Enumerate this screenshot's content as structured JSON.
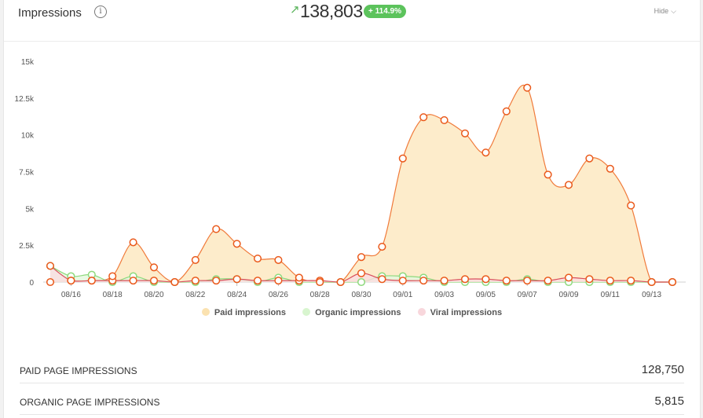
{
  "header": {
    "title": "Impressions",
    "info_icon": "i",
    "total": "138,803",
    "change_badge": "+ 114.9%",
    "hide_label": "Hide",
    "arrow_icon": "trend-up-arrow",
    "trend_color": "#5cc35c"
  },
  "legend": [
    {
      "label": "Paid impressions",
      "color": "#fbe2b0"
    },
    {
      "label": "Organic impressions",
      "color": "#d8f5cf"
    },
    {
      "label": "Viral impressions",
      "color": "#f8d7dc"
    }
  ],
  "stats": [
    {
      "label": "PAID PAGE IMPRESSIONS",
      "value": "128,750"
    },
    {
      "label": "ORGANIC PAGE IMPRESSIONS",
      "value": "5,815"
    }
  ],
  "chart_data": {
    "type": "area",
    "x_tick_labels": [
      "08/16",
      "08/18",
      "08/20",
      "08/22",
      "08/24",
      "08/26",
      "08/28",
      "08/30",
      "09/01",
      "09/03",
      "09/05",
      "09/07",
      "09/09",
      "09/11",
      "09/13"
    ],
    "y_tick_labels": [
      "0",
      "2.5k",
      "5k",
      "7.5k",
      "10k",
      "12.5k",
      "15k"
    ],
    "ylim": [
      0,
      15000
    ],
    "x": [
      "08/15",
      "08/16",
      "08/17",
      "08/18",
      "08/19",
      "08/20",
      "08/21",
      "08/22",
      "08/23",
      "08/24",
      "08/25",
      "08/26",
      "08/27",
      "08/28",
      "08/29",
      "08/30",
      "08/31",
      "09/01",
      "09/02",
      "09/03",
      "09/04",
      "09/05",
      "09/06",
      "09/07",
      "09/08",
      "09/09",
      "09/10",
      "09/11",
      "09/12",
      "09/13",
      "09/14"
    ],
    "series": [
      {
        "name": "Paid impressions",
        "fill": "#fdeccb",
        "line": "#f07a3a",
        "values": [
          0,
          100,
          100,
          400,
          2700,
          1000,
          0,
          1500,
          3600,
          2600,
          1600,
          1500,
          300,
          0,
          0,
          1700,
          2400,
          8400,
          11200,
          11000,
          10100,
          8800,
          11600,
          13200,
          7300,
          6600,
          8400,
          7700,
          5200,
          0,
          0
        ]
      },
      {
        "name": "Organic impressions",
        "fill": "#e3f7dd",
        "line": "#8ed97d",
        "values": [
          1100,
          400,
          500,
          0,
          400,
          0,
          0,
          0,
          200,
          200,
          0,
          300,
          0,
          0,
          0,
          0,
          400,
          400,
          300,
          0,
          0,
          0,
          0,
          200,
          0,
          0,
          0,
          0,
          0,
          0,
          0
        ]
      },
      {
        "name": "Viral impressions",
        "fill": "#fadde1",
        "line": "#d94f5c",
        "values": [
          1100,
          100,
          100,
          100,
          100,
          100,
          0,
          100,
          100,
          200,
          100,
          100,
          100,
          100,
          0,
          600,
          200,
          100,
          100,
          100,
          200,
          200,
          100,
          100,
          100,
          300,
          200,
          100,
          100,
          0,
          0
        ]
      }
    ],
    "marker_color": "#ea5a1c",
    "grid": false,
    "legend_position": "bottom"
  }
}
